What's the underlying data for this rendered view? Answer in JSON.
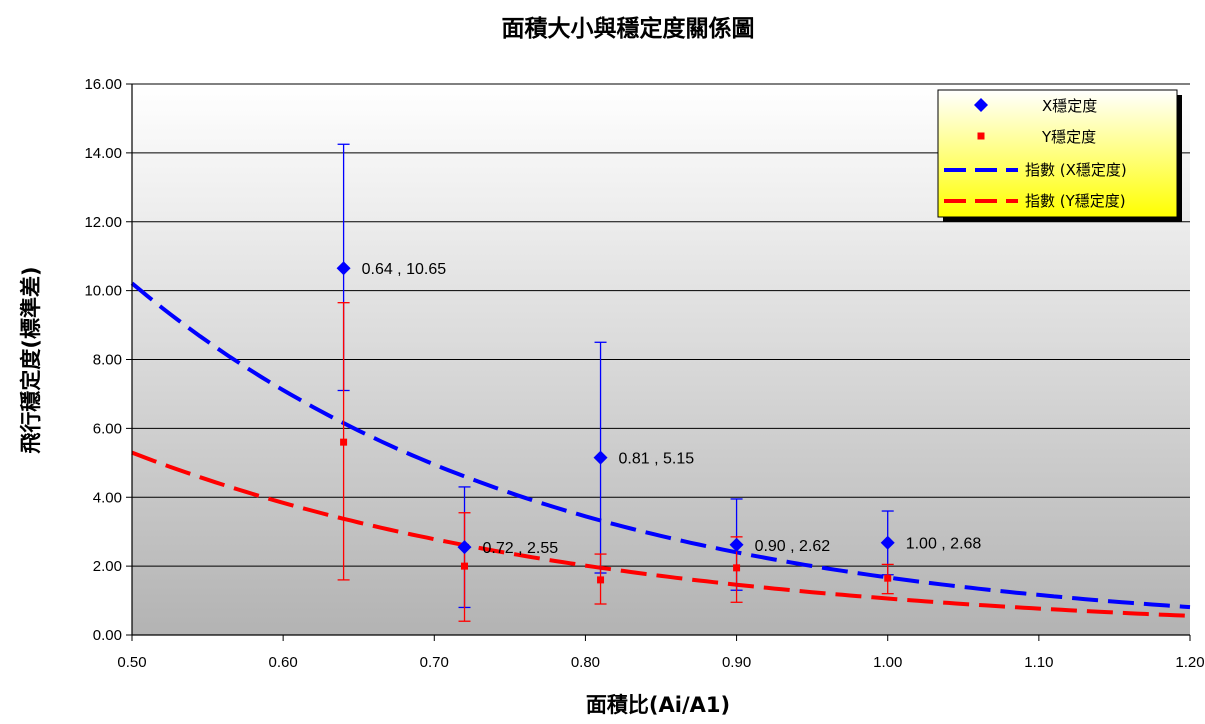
{
  "chart_data": {
    "type": "scatter",
    "title": "面積大小與穩定度關係圖",
    "xlabel": "面積比(Ai/A1)",
    "ylabel": "飛行穩定度(標準差)",
    "xlim": [
      0.5,
      1.2
    ],
    "ylim": [
      0,
      16
    ],
    "x_ticks": [
      "0.50",
      "0.60",
      "0.70",
      "0.80",
      "0.90",
      "1.00",
      "1.10",
      "1.20"
    ],
    "y_ticks": [
      "0.00",
      "2.00",
      "4.00",
      "6.00",
      "8.00",
      "10.00",
      "12.00",
      "14.00",
      "16.00"
    ],
    "grid": "horizontal",
    "legend_position": "top-right",
    "series": [
      {
        "name": "X穩定度",
        "color": "#0000ff",
        "marker": "diamond",
        "x": [
          0.64,
          0.72,
          0.81,
          0.9,
          1.0
        ],
        "y": [
          10.65,
          2.55,
          5.15,
          2.62,
          2.68
        ],
        "err_low": [
          7.1,
          0.8,
          1.8,
          1.3,
          1.75
        ],
        "err_high": [
          14.25,
          4.3,
          8.5,
          3.95,
          3.6
        ],
        "labels": [
          "0.64 , 10.65",
          "0.72 , 2.55",
          "0.81 , 5.15",
          "0.90 , 2.62",
          "1.00 , 2.68"
        ]
      },
      {
        "name": "Y穩定度",
        "color": "#ff0000",
        "marker": "square",
        "x": [
          0.64,
          0.72,
          0.81,
          0.9,
          1.0
        ],
        "y": [
          5.6,
          2.0,
          1.6,
          1.95,
          1.65
        ],
        "err_low": [
          1.6,
          0.4,
          0.9,
          0.95,
          1.2
        ],
        "err_high": [
          9.65,
          3.55,
          2.35,
          2.85,
          2.05
        ]
      }
    ],
    "trendlines": [
      {
        "name": "指數 (X穩定度)",
        "type": "exponential",
        "color": "#0000ff",
        "style": "dashed",
        "a": 62.4,
        "b": -3.62
      },
      {
        "name": "指數 (Y穩定度)",
        "type": "exponential",
        "color": "#ff0000",
        "style": "dashed",
        "a": 26.5,
        "b": -3.22
      }
    ]
  }
}
